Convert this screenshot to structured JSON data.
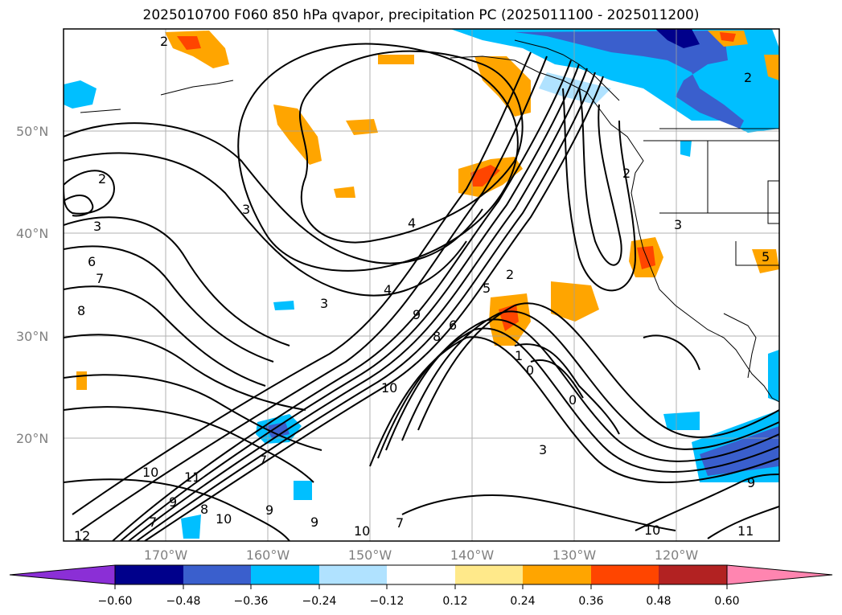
{
  "title": "2025010700 F060 850 hPa qvapor, precipitation PC (2025011100 - 2025011200)",
  "map": {
    "lat_labels": [
      {
        "text": "50°N",
        "lat": 50
      },
      {
        "text": "40°N",
        "lat": 40
      },
      {
        "text": "30°N",
        "lat": 30
      },
      {
        "text": "20°N",
        "lat": 20
      }
    ],
    "lon_labels": [
      {
        "text": "170°W",
        "lon": -170
      },
      {
        "text": "160°W",
        "lon": -160
      },
      {
        "text": "150°W",
        "lon": -150
      },
      {
        "text": "140°W",
        "lon": -140
      },
      {
        "text": "130°W",
        "lon": -130
      },
      {
        "text": "120°W",
        "lon": -120
      }
    ],
    "contour_labels": [
      "2",
      "3",
      "6",
      "7",
      "8",
      "3",
      "4",
      "3",
      "4",
      "9",
      "8",
      "6",
      "5",
      "2",
      "2",
      "3",
      "5",
      "10",
      "1",
      "0",
      "0",
      "3",
      "10",
      "11",
      "9",
      "8",
      "10",
      "9",
      "9",
      "10",
      "7",
      "7",
      "10",
      "9",
      "11",
      "12",
      "7",
      "2",
      "2"
    ]
  },
  "colorbar": {
    "colors": [
      "#8b2fd6",
      "#00008b",
      "#3a5fcd",
      "#00bfff",
      "#b0e2ff",
      "#ffffff",
      "#ffe98a",
      "#ffa500",
      "#ff4500",
      "#b22222",
      "#ff85b0"
    ],
    "tick_labels": [
      "−0.60",
      "−0.48",
      "−0.36",
      "−0.24",
      "−0.12",
      "0.12",
      "0.24",
      "0.36",
      "0.48",
      "0.60"
    ]
  }
}
